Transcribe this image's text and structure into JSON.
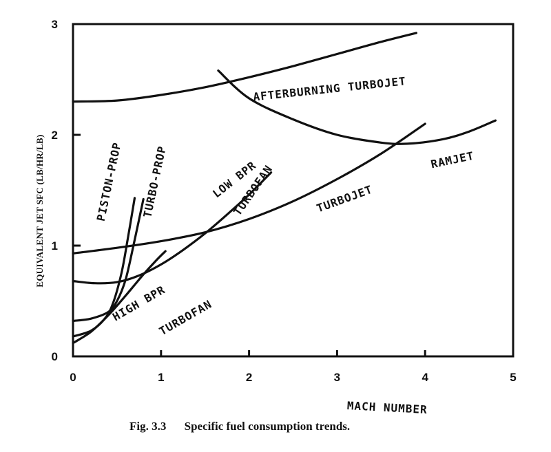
{
  "chart_data": {
    "type": "line",
    "title": "",
    "caption": {
      "number": "Fig. 3.3",
      "text": "Specific fuel consumption trends."
    },
    "xlabel": "MACH NUMBER",
    "ylabel": "EQUIVALENT JET SFC (LB/HR/LB)",
    "xlim": [
      0,
      5
    ],
    "ylim": [
      0,
      3
    ],
    "x_ticks": [
      "0",
      "1",
      "2",
      "3",
      "4",
      "5"
    ],
    "y_ticks": [
      "0",
      "1",
      "2",
      "3"
    ],
    "grid": false,
    "series": [
      {
        "name": "AFTERBURNING TURBOJET",
        "x": [
          0.0,
          0.5,
          1.0,
          1.5,
          2.0,
          2.5,
          3.0,
          3.5,
          3.9
        ],
        "y": [
          2.3,
          2.31,
          2.36,
          2.43,
          2.52,
          2.62,
          2.73,
          2.84,
          2.92
        ]
      },
      {
        "name": "RAMJET",
        "x": [
          1.65,
          2.0,
          2.5,
          3.0,
          3.5,
          3.8,
          4.2,
          4.5,
          4.8
        ],
        "y": [
          2.58,
          2.33,
          2.14,
          2.0,
          1.93,
          1.92,
          1.96,
          2.03,
          2.13
        ]
      },
      {
        "name": "TURBOJET",
        "x": [
          0.0,
          0.5,
          1.0,
          1.5,
          2.0,
          2.5,
          3.0,
          3.5,
          4.0
        ],
        "y": [
          0.93,
          0.98,
          1.04,
          1.12,
          1.24,
          1.4,
          1.6,
          1.83,
          2.1
        ]
      },
      {
        "name": "LOW BPR TURBOFAN",
        "x": [
          0.0,
          0.25,
          0.5,
          0.75,
          1.0,
          1.25,
          1.5,
          1.75,
          2.0,
          2.25
        ],
        "y": [
          0.68,
          0.66,
          0.67,
          0.73,
          0.83,
          0.96,
          1.11,
          1.28,
          1.46,
          1.66
        ]
      },
      {
        "name": "HIGH BPR TURBOFAN",
        "x": [
          0.0,
          0.2,
          0.4,
          0.6,
          0.8,
          0.95,
          1.05
        ],
        "y": [
          0.12,
          0.22,
          0.37,
          0.55,
          0.74,
          0.87,
          0.95
        ]
      },
      {
        "name": "PISTON-PROP",
        "x": [
          0.0,
          0.2,
          0.35,
          0.45,
          0.55,
          0.62,
          0.7
        ],
        "y": [
          0.18,
          0.23,
          0.33,
          0.47,
          0.75,
          1.05,
          1.43
        ]
      },
      {
        "name": "TURBO-PROP",
        "x": [
          0.0,
          0.2,
          0.4,
          0.5,
          0.6,
          0.7,
          0.8
        ],
        "y": [
          0.32,
          0.34,
          0.4,
          0.5,
          0.7,
          1.05,
          1.42
        ]
      }
    ],
    "labels": [
      {
        "text": "AFTERBURNING TURBOJET",
        "x": 2.92,
        "y": 2.38,
        "rotation": -6
      },
      {
        "text": "RAMJET",
        "x": 4.32,
        "y": 1.74,
        "rotation": -12
      },
      {
        "text": "TURBOJET",
        "x": 3.1,
        "y": 1.39,
        "rotation": -20
      },
      {
        "text": "LOW BPR",
        "x": 1.86,
        "y": 1.57,
        "rotation": -38
      },
      {
        "text": "TURBOFAN",
        "x": 2.08,
        "y": 1.48,
        "rotation": -55
      },
      {
        "text": "HIGH BPR",
        "x": 0.77,
        "y": 0.45,
        "rotation": -30
      },
      {
        "text": "TURBOFAN",
        "x": 1.3,
        "y": 0.32,
        "rotation": -30
      },
      {
        "text": "PISTON-PROP",
        "x": 0.45,
        "y": 1.57,
        "rotation": -78
      },
      {
        "text": "TURBO-PROP",
        "x": 0.97,
        "y": 1.57,
        "rotation": -78
      }
    ]
  }
}
